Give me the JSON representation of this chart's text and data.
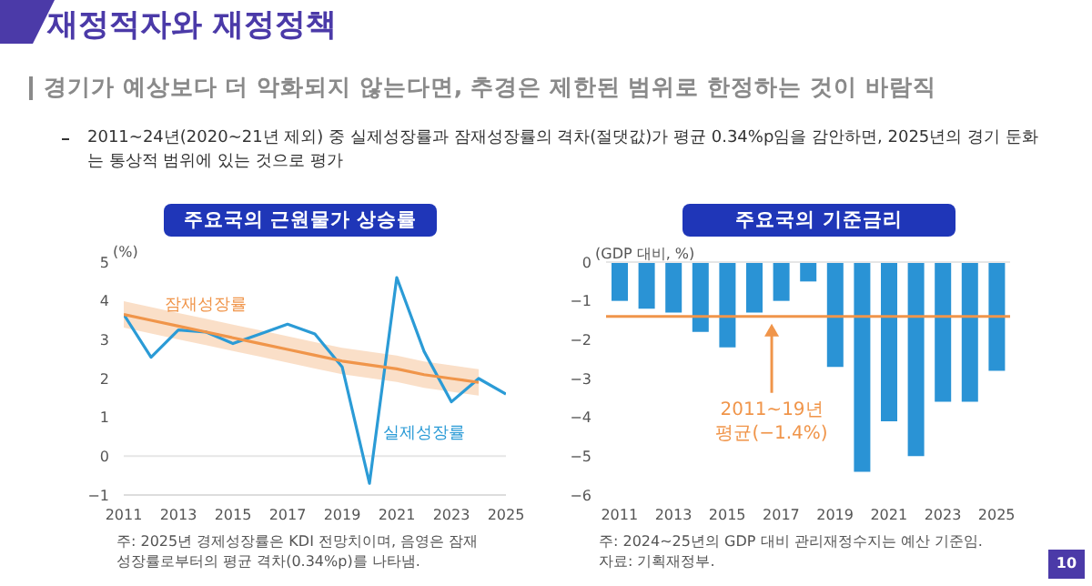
{
  "chart_data": [
    {
      "type": "other",
      "title": "재정적자와 재정정책",
      "subtitle": "경기가 예상보다 더 악화되지 않는다면, 추경은 제한된 범위로 한정하는 것이 바람직",
      "annotations": [
        "2011~24년(2020~21년 제외) 중 실제성장률과 잠재성장률의 격차(절댓값)가 평균 0.34%p임을 감안하면, 2025년의 경기 둔화는 통상적 범위에 있는 것으로 평가",
        "10"
      ]
    },
    {
      "type": "line",
      "title": "주요국의 근원물가 상승률",
      "ylabel": "(%)",
      "x": [
        2011,
        2012,
        2013,
        2014,
        2015,
        2016,
        2017,
        2018,
        2019,
        2020,
        2021,
        2022,
        2023,
        2024,
        2025
      ],
      "xlim": [
        2011,
        2025
      ],
      "xticks": [
        2011,
        2013,
        2015,
        2017,
        2019,
        2021,
        2023,
        2025
      ],
      "ylim": [
        -1,
        5
      ],
      "yticks": [
        {
          "value": -1,
          "label": "−1"
        },
        0,
        1,
        2,
        3,
        4,
        5
      ],
      "grid": false,
      "legend": false,
      "marker": "none",
      "line_style": "solid",
      "series": [
        {
          "name": "실제성장률",
          "color": "#2b9bd6",
          "values": [
            3.65,
            2.55,
            3.25,
            3.2,
            2.9,
            3.15,
            3.4,
            3.15,
            2.3,
            -0.7,
            4.6,
            2.7,
            1.4,
            2.0,
            1.6
          ]
        },
        {
          "name": "잠재성장률",
          "color": "#f0954a",
          "values": [
            3.65,
            3.5,
            3.35,
            3.2,
            3.05,
            2.9,
            2.75,
            2.6,
            2.45,
            2.35,
            2.25,
            2.1,
            2.0,
            1.9,
            null
          ],
          "lower": [
            3.31,
            3.16,
            3.01,
            2.86,
            2.71,
            2.56,
            2.41,
            2.26,
            2.11,
            2.01,
            1.91,
            1.76,
            1.66,
            1.56,
            null
          ],
          "upper": [
            3.99,
            3.84,
            3.69,
            3.54,
            3.39,
            3.24,
            3.09,
            2.94,
            2.79,
            2.69,
            2.59,
            2.44,
            2.34,
            2.24,
            null
          ]
        }
      ],
      "ref_lines": [
        {
          "axis": "y",
          "value": 0,
          "color": "#e6e6e6"
        }
      ],
      "annotations": [
        "주: 2025년 경제성장률은 KDI 전망치이며, 음영은 잠재성장률로부터의 평균 격차(0.34%p)를 나타냄."
      ]
    },
    {
      "type": "bar",
      "title": "주요국의 기준금리",
      "ylabel": "(GDP 대비, %)",
      "categories": [
        "2011",
        null,
        "2013",
        null,
        "2015",
        null,
        "2017",
        null,
        "2019",
        null,
        "2021",
        null,
        "2023",
        null,
        "2025"
      ],
      "values": [
        -1.0,
        -1.2,
        -1.3,
        -1.8,
        -2.2,
        -1.3,
        -1.0,
        -0.5,
        -2.7,
        -5.4,
        -4.1,
        -5.0,
        -3.6,
        -3.6,
        -2.8
      ],
      "color": "#2a93d5",
      "ylim": [
        -6,
        0
      ],
      "yticks": [
        {
          "value": -6,
          "label": "−6"
        },
        {
          "value": -5,
          "label": "−5"
        },
        {
          "value": -4,
          "label": "−4"
        },
        {
          "value": -3,
          "label": "−3"
        },
        {
          "value": -2,
          "label": "−2"
        },
        {
          "value": -1,
          "label": "−1"
        },
        0
      ],
      "grid": false,
      "legend": false,
      "ref_lines": [
        {
          "axis": "y",
          "value": 0,
          "color": "#e6e6e6"
        },
        {
          "axis": "y",
          "value": -1.4,
          "color": "#f0954a",
          "label": "2011~19년\n평균(−1.4%)"
        }
      ],
      "annotations": [
        "주: 2024~25년의 GDP 대비 관리재정수지는 예산 기준임.",
        "자료: 기획재정부."
      ]
    }
  ]
}
